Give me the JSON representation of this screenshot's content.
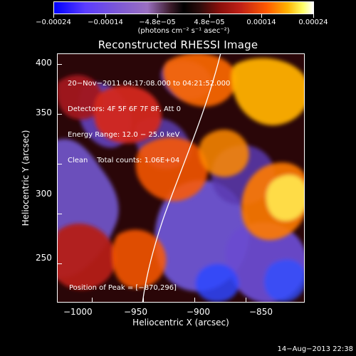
{
  "colorbar": {
    "labels": [
      "−0.00024",
      "−0.00014",
      "−4.8e−05",
      "4.8e−05",
      "0.00014",
      "0.00024"
    ],
    "units": "(photons cm⁻² s⁻¹ asec⁻²)"
  },
  "plot": {
    "title": "Reconstructed RHESSI Image",
    "info": {
      "line1": "20−Nov−2011 04:17:08.000 to 04:21:52.000",
      "line2": "Detectors: 4F 5F 6F 7F 8F, Att 0",
      "line3": "Energy Range: 12.0 − 25.0 keV",
      "line4": "Clean    Total counts: 1.06E+04"
    },
    "peak": "Position of Peak = [−870,296]",
    "y_ticks": [
      "400",
      "350",
      "300",
      "250"
    ],
    "x_ticks": [
      "−1000",
      "−950",
      "−900",
      "−850"
    ],
    "y_label": "Heliocentric Y (arcsec)",
    "x_label": "Heliocentric X (arcsec)"
  },
  "footer": {
    "date": "14−Aug−2013 22:38"
  }
}
